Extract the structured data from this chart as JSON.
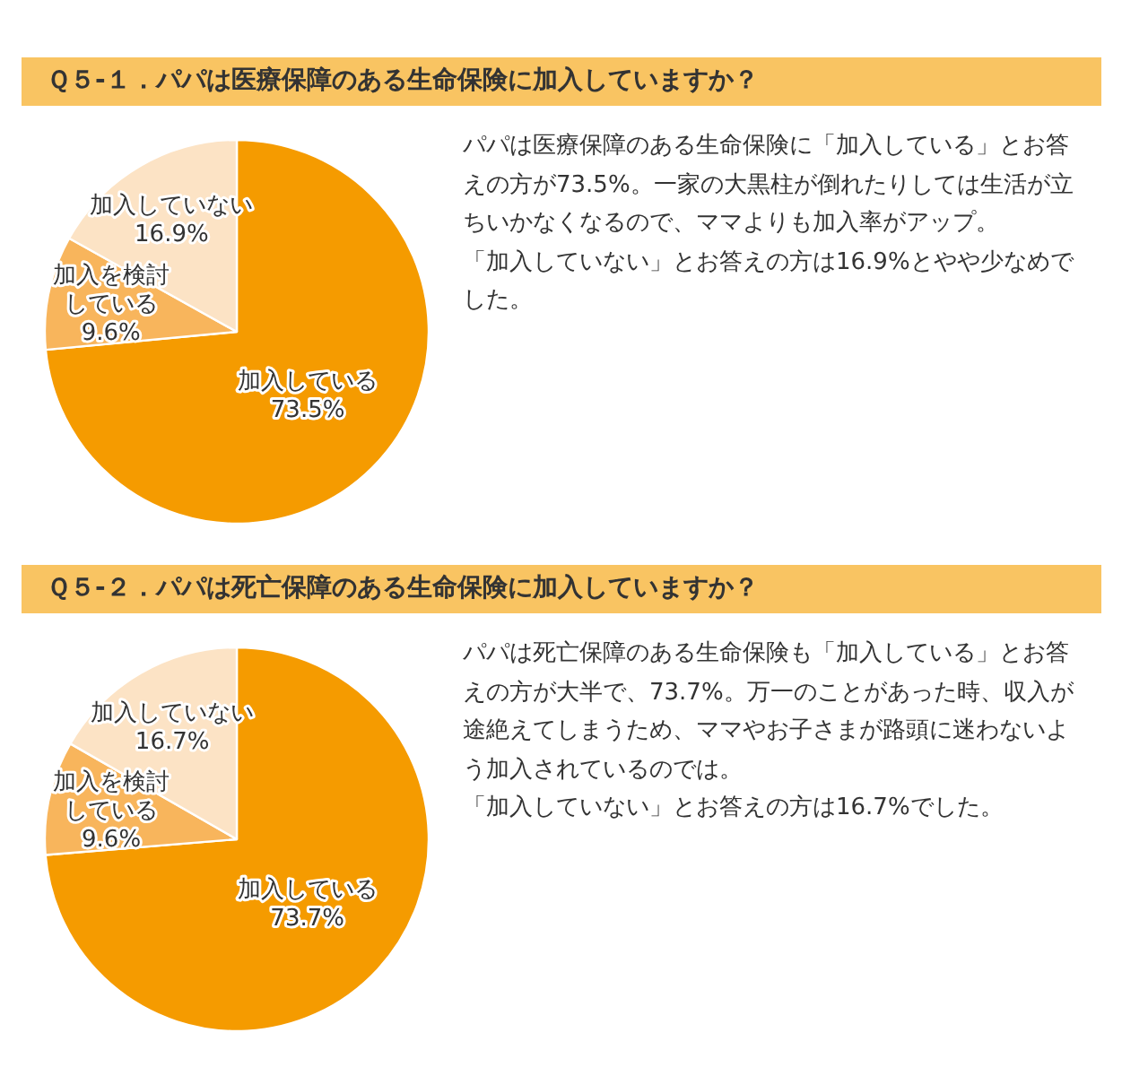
{
  "chart_data": [
    {
      "type": "pie",
      "title": "Ｑ５-１．パパは医療保障のある生命保険に加入していますか？",
      "categories": [
        "加入している",
        "加入を検討している",
        "加入していない"
      ],
      "values": [
        73.5,
        9.6,
        16.9
      ],
      "colors": [
        "#f59b00",
        "#f8b55c",
        "#fce3c5"
      ],
      "value_labels": [
        "73.5%",
        "9.6%",
        "16.9%"
      ],
      "annotations": [
        "パパは医療保障のある生命保険に「加入している」とお答えの方が73.5%。一家の大黒柱が倒れたりしては生活が立ちいかなくなるので、ママよりも加入率がアップ。",
        "「加入していない」とお答えの方は16.9%とやや少なめでした。"
      ]
    },
    {
      "type": "pie",
      "title": "Ｑ５-２．パパは死亡保障のある生命保険に加入していますか？",
      "categories": [
        "加入している",
        "加入を検討している",
        "加入していない"
      ],
      "values": [
        73.7,
        9.6,
        16.7
      ],
      "colors": [
        "#f59b00",
        "#f8b55c",
        "#fce3c5"
      ],
      "value_labels": [
        "73.7%",
        "9.6%",
        "16.7%"
      ],
      "annotations": [
        "パパは死亡保障のある生命保険も「加入している」とお答えの方が大半で、73.7%。万一のことがあった時、収入が途絶えてしまうため、ママやお子さまが路頭に迷わないよう加入されているのでは。",
        "「加入していない」とお答えの方は16.7%でした。"
      ]
    }
  ]
}
